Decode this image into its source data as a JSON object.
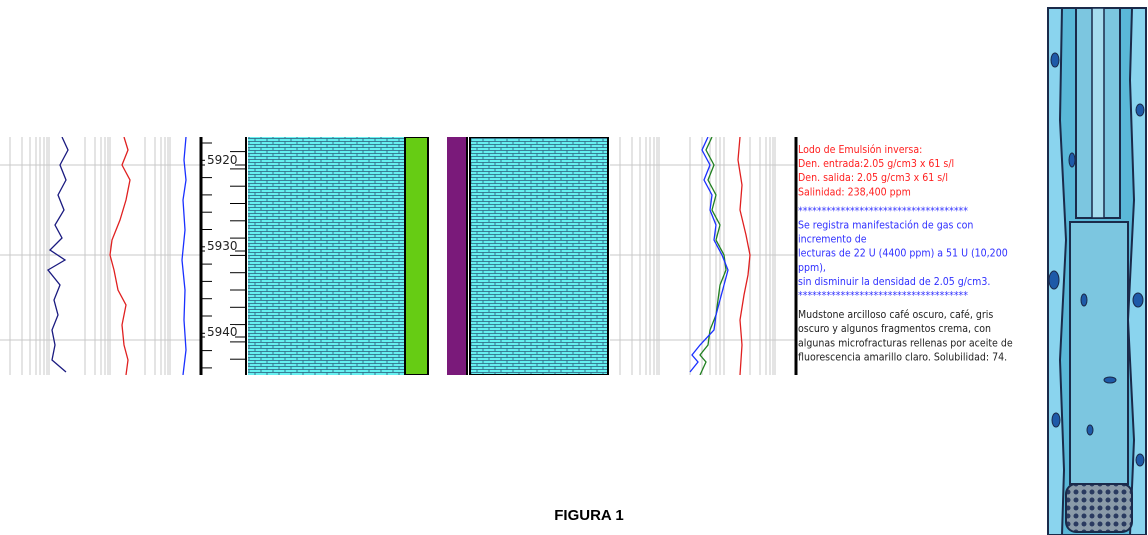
{
  "depth_labels": [
    "5920",
    "5930",
    "5940"
  ],
  "annotations": [
    {
      "color": "#ff2020",
      "lines": [
        "Lodo de Emulsión inversa:",
        "Den. entrada:2.05 g/cm3 x 61 s/l",
        "Den. salida: 2.05 g/cm3 x 61 s/l",
        "Salinidad: 238,400 ppm"
      ]
    },
    {
      "color": "#3030ff",
      "lines": [
        "************************************",
        "Se registra manifestación de gas con",
        "incremento de",
        "lecturas de 22 U (4400 ppm) a 51 U (10,200",
        "ppm),",
        "sin disminuir la densidad de 2.05 g/cm3.",
        "************************************"
      ]
    },
    {
      "color": "#222222",
      "lines": [
        "Mudstone arcilloso café oscuro, café,  gris",
        "oscuro y algunos fragmentos crema, con",
        "algunas microfracturas rellenas por  aceite de",
        "fluorescencia amarillo claro. Solubilidad: 74."
      ]
    }
  ],
  "caption": "FIGURA 1"
}
